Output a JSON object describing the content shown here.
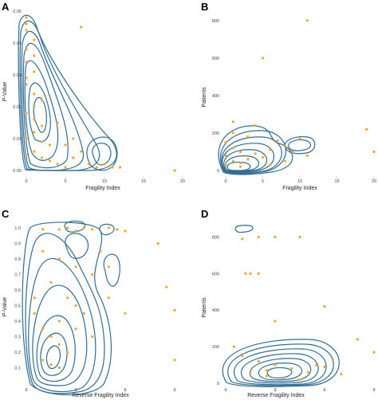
{
  "colors": {
    "points": "#f5a623",
    "contour": "#2f6d97"
  },
  "chart_data": [
    {
      "panel": "A",
      "type": "scatter",
      "subtype": "scatter with 2D density contours",
      "xlabel": "Fragility Index",
      "ylabel": "P-Value",
      "xlim": [
        0,
        20
      ],
      "ylim": [
        0,
        0.05
      ],
      "xticks": [
        0,
        5,
        10,
        15,
        20
      ],
      "yticks": [
        0.0,
        0.01,
        0.02,
        0.03,
        0.04,
        0.05
      ],
      "xtick_labels": [
        "0",
        "5",
        "10",
        "15",
        "20"
      ],
      "ytick_labels": [
        "0.00",
        "0.01",
        "0.02",
        "0.03",
        "0.04",
        "0.05"
      ],
      "points": [
        [
          0,
          0.048
        ],
        [
          0,
          0.046
        ],
        [
          0,
          0.044
        ],
        [
          1,
          0.041
        ],
        [
          0,
          0.038
        ],
        [
          1,
          0.036
        ],
        [
          0,
          0.034
        ],
        [
          1,
          0.031
        ],
        [
          0,
          0.029
        ],
        [
          0,
          0.027
        ],
        [
          1,
          0.024
        ],
        [
          2,
          0.022
        ],
        [
          1,
          0.02
        ],
        [
          0,
          0.018
        ],
        [
          1,
          0.016
        ],
        [
          2,
          0.014
        ],
        [
          1,
          0.012
        ],
        [
          0,
          0.01
        ],
        [
          2,
          0.009
        ],
        [
          3,
          0.008
        ],
        [
          1,
          0.006
        ],
        [
          0,
          0.005
        ],
        [
          2,
          0.004
        ],
        [
          3,
          0.003
        ],
        [
          4,
          0.002
        ],
        [
          5,
          0.001
        ],
        [
          6,
          0.004
        ],
        [
          7,
          0.006
        ],
        [
          8,
          0.002
        ],
        [
          9,
          0.001
        ],
        [
          10,
          0.002
        ],
        [
          11,
          0.001
        ],
        [
          12,
          0.001
        ],
        [
          7,
          0.045
        ],
        [
          19,
          0.0
        ],
        [
          6,
          0.01
        ],
        [
          4,
          0.015
        ],
        [
          5,
          0.008
        ]
      ],
      "contour_peak": [
        1,
        0.012
      ]
    },
    {
      "panel": "B",
      "type": "scatter",
      "subtype": "scatter with 2D density contours",
      "xlabel": "Fragility Index",
      "ylabel": "Patients",
      "xlim": [
        0,
        20
      ],
      "ylim": [
        0,
        850
      ],
      "xticks": [
        0,
        5,
        10,
        15,
        20
      ],
      "yticks": [
        0,
        200,
        400,
        600,
        800
      ],
      "xtick_labels": [
        "0",
        "5",
        "10",
        "15",
        "20"
      ],
      "ytick_labels": [
        "0",
        "200",
        "400",
        "600",
        "800"
      ],
      "points": [
        [
          0,
          30
        ],
        [
          1,
          50
        ],
        [
          0,
          80
        ],
        [
          2,
          100
        ],
        [
          1,
          120
        ],
        [
          3,
          60
        ],
        [
          2,
          40
        ],
        [
          0,
          150
        ],
        [
          1,
          200
        ],
        [
          3,
          180
        ],
        [
          4,
          90
        ],
        [
          5,
          70
        ],
        [
          6,
          110
        ],
        [
          7,
          160
        ],
        [
          8,
          130
        ],
        [
          9,
          100
        ],
        [
          10,
          170
        ],
        [
          11,
          80
        ],
        [
          5,
          600
        ],
        [
          11,
          800
        ],
        [
          19,
          220
        ],
        [
          20,
          100
        ],
        [
          4,
          240
        ],
        [
          1,
          260
        ],
        [
          2,
          20
        ],
        [
          6,
          30
        ],
        [
          8,
          50
        ]
      ],
      "contour_peak": [
        2,
        50
      ]
    },
    {
      "panel": "C",
      "type": "scatter",
      "subtype": "scatter with 2D density contours",
      "xlabel": "Reverse Fragility Index",
      "ylabel": "P-Value",
      "xlim": [
        0,
        9
      ],
      "ylim": [
        0,
        1.0
      ],
      "xticks": [
        0,
        3,
        6,
        9
      ],
      "yticks": [
        0.1,
        0.2,
        0.3,
        0.4,
        0.5,
        0.6,
        0.7,
        0.8,
        0.9,
        1.0
      ],
      "xtick_labels": [
        "0",
        "3",
        "6",
        "9"
      ],
      "ytick_labels": [
        "0.1",
        "0.2",
        "0.3",
        "0.4",
        "0.5",
        "0.6",
        "0.7",
        "0.8",
        "0.9",
        "1.0"
      ],
      "points": [
        [
          1,
          0.99
        ],
        [
          2,
          0.99
        ],
        [
          2.5,
          1.0
        ],
        [
          3,
          0.98
        ],
        [
          3.5,
          1.0
        ],
        [
          4,
          0.99
        ],
        [
          5,
          1.0
        ],
        [
          5.5,
          0.99
        ],
        [
          6,
          0.98
        ],
        [
          1,
          0.85
        ],
        [
          2,
          0.8
        ],
        [
          3,
          0.75
        ],
        [
          4,
          0.7
        ],
        [
          1.5,
          0.65
        ],
        [
          2.5,
          0.55
        ],
        [
          3,
          0.5
        ],
        [
          3.5,
          0.45
        ],
        [
          2,
          0.4
        ],
        [
          1,
          0.35
        ],
        [
          1.5,
          0.3
        ],
        [
          2,
          0.25
        ],
        [
          2.5,
          0.2
        ],
        [
          1,
          0.15
        ],
        [
          1.5,
          0.12
        ],
        [
          2,
          0.1
        ],
        [
          3,
          0.35
        ],
        [
          4,
          0.3
        ],
        [
          5,
          0.55
        ],
        [
          6,
          0.45
        ],
        [
          8,
          0.9
        ],
        [
          8.5,
          0.62
        ],
        [
          9,
          0.47
        ],
        [
          9,
          0.15
        ],
        [
          0.5,
          0.55
        ],
        [
          0.5,
          0.45
        ],
        [
          4.5,
          0.85
        ],
        [
          5,
          0.75
        ]
      ],
      "contour_peak": [
        2,
        0.18
      ]
    },
    {
      "panel": "D",
      "type": "scatter",
      "subtype": "scatter with 2D density contours",
      "xlabel": "Reverse Fragility Index",
      "ylabel": "Patients",
      "xlim": [
        0,
        9
      ],
      "ylim": [
        0,
        850
      ],
      "xticks": [
        0,
        3,
        6,
        9
      ],
      "yticks": [
        0,
        200,
        400,
        600,
        800
      ],
      "xtick_labels": [
        "0",
        "3",
        "6",
        "9"
      ],
      "ytick_labels": [
        "0",
        "200",
        "400",
        "600",
        "800"
      ],
      "points": [
        [
          1,
          790
        ],
        [
          2,
          800
        ],
        [
          3,
          800
        ],
        [
          4.5,
          800
        ],
        [
          1.2,
          600
        ],
        [
          1.5,
          600
        ],
        [
          2,
          600
        ],
        [
          6,
          420
        ],
        [
          3,
          340
        ],
        [
          0.5,
          200
        ],
        [
          1,
          150
        ],
        [
          2,
          120
        ],
        [
          3,
          100
        ],
        [
          4,
          80
        ],
        [
          5,
          60
        ],
        [
          6,
          90
        ],
        [
          7,
          50
        ],
        [
          2.5,
          40
        ],
        [
          3.5,
          30
        ],
        [
          4.5,
          20
        ],
        [
          5.5,
          100
        ],
        [
          6.5,
          130
        ],
        [
          8,
          240
        ],
        [
          9,
          170
        ],
        [
          1.5,
          60
        ],
        [
          2.5,
          70
        ]
      ],
      "contour_peak": [
        3,
        50
      ]
    }
  ],
  "panel_ids": [
    "A",
    "B",
    "C",
    "D"
  ]
}
